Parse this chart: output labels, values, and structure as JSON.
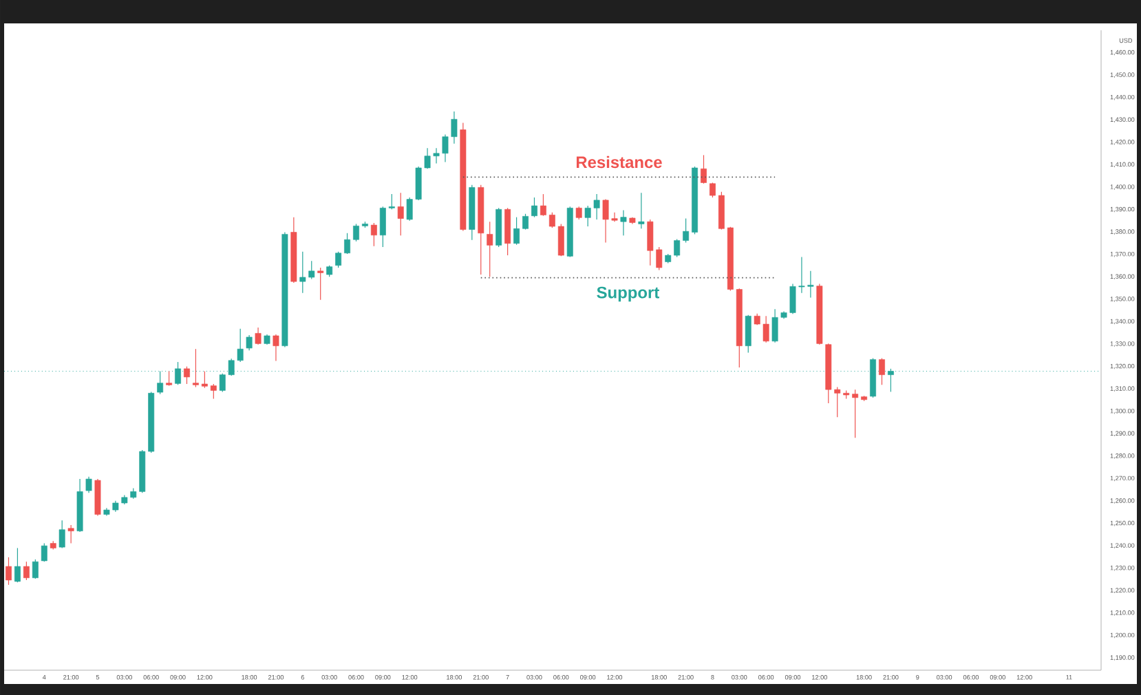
{
  "chart_data": {
    "type": "candlestick",
    "ylabel": "USD",
    "categories": [
      null,
      null,
      null,
      null,
      "4",
      null,
      null,
      "21:00",
      null,
      null,
      "5",
      null,
      null,
      "03:00",
      null,
      null,
      "06:00",
      null,
      null,
      "09:00",
      null,
      null,
      "12:00",
      null,
      null,
      null,
      null,
      "18:00",
      null,
      null,
      "21:00",
      null,
      null,
      "6",
      null,
      null,
      "03:00",
      null,
      null,
      "06:00",
      null,
      null,
      "09:00",
      null,
      null,
      "12:00",
      null,
      null,
      null,
      null,
      "18:00",
      null,
      null,
      "21:00",
      null,
      null,
      "7",
      null,
      null,
      "03:00",
      null,
      null,
      "06:00",
      null,
      null,
      "09:00",
      null,
      null,
      "12:00",
      null,
      null,
      null,
      null,
      "18:00",
      null,
      null,
      "21:00",
      null,
      null,
      "8",
      null,
      null,
      "03:00",
      null,
      null,
      "06:00",
      null,
      null,
      "09:00",
      null,
      null,
      "12:00",
      null,
      null,
      null,
      null,
      "18:00",
      null,
      null,
      "21:00",
      null,
      null,
      "9",
      null,
      null,
      "03:00",
      null,
      null,
      "06:00",
      null,
      null,
      "09:00",
      null,
      null,
      "12:00",
      null,
      null,
      null,
      null,
      "11",
      null,
      null,
      null
    ],
    "ohlc": [
      [
        1230.8,
        1234.9,
        1222.6,
        1224.7
      ],
      [
        1224.1,
        1239.0,
        1223.7,
        1230.8
      ],
      [
        1230.8,
        1232.9,
        1224.7,
        1225.7
      ],
      [
        1225.7,
        1233.9,
        1225.3,
        1232.9
      ],
      [
        1233.3,
        1241.1,
        1232.9,
        1240.0
      ],
      [
        1241.1,
        1242.1,
        1238.4,
        1239.0
      ],
      [
        1239.4,
        1251.3,
        1239.0,
        1247.2
      ],
      [
        1247.8,
        1249.3,
        1241.1,
        1246.6
      ],
      [
        1246.6,
        1269.8,
        1246.2,
        1264.2
      ],
      [
        1264.6,
        1270.8,
        1263.6,
        1269.8
      ],
      [
        1269.2,
        1269.8,
        1253.4,
        1254.0
      ],
      [
        1254.0,
        1256.9,
        1253.4,
        1256.0
      ],
      [
        1256.0,
        1260.1,
        1255.2,
        1259.1
      ],
      [
        1259.1,
        1262.6,
        1258.5,
        1261.6
      ],
      [
        1261.6,
        1265.7,
        1261.0,
        1264.2
      ],
      [
        1264.2,
        1282.7,
        1263.6,
        1282.1
      ],
      [
        1282.1,
        1308.7,
        1281.5,
        1308.1
      ],
      [
        1308.5,
        1317.9,
        1307.7,
        1312.6
      ],
      [
        1312.6,
        1317.9,
        1311.4,
        1311.8
      ],
      [
        1312.4,
        1322.0,
        1311.8,
        1319.0
      ],
      [
        1319.0,
        1320.0,
        1312.2,
        1315.3
      ],
      [
        1312.6,
        1327.8,
        1310.8,
        1311.8
      ],
      [
        1312.2,
        1317.9,
        1310.4,
        1311.2
      ],
      [
        1311.4,
        1312.2,
        1305.6,
        1309.3
      ],
      [
        1309.3,
        1316.9,
        1308.7,
        1316.3
      ],
      [
        1316.3,
        1323.5,
        1315.9,
        1322.7
      ],
      [
        1322.7,
        1336.8,
        1322.0,
        1327.8
      ],
      [
        1328.2,
        1334.0,
        1327.2,
        1333.1
      ],
      [
        1334.8,
        1337.4,
        1329.8,
        1330.2
      ],
      [
        1330.2,
        1334.3,
        1329.8,
        1333.7
      ],
      [
        1333.7,
        1334.3,
        1322.5,
        1329.2
      ],
      [
        1329.2,
        1379.9,
        1328.6,
        1379.0
      ],
      [
        1379.9,
        1386.6,
        1357.3,
        1357.9
      ],
      [
        1357.9,
        1371.2,
        1352.8,
        1359.8
      ],
      [
        1359.8,
        1367.1,
        1359.0,
        1362.6
      ],
      [
        1362.6,
        1364.1,
        1349.7,
        1361.8
      ],
      [
        1361.0,
        1365.1,
        1360.0,
        1364.5
      ],
      [
        1365.1,
        1371.2,
        1364.1,
        1370.6
      ],
      [
        1370.6,
        1379.5,
        1370.2,
        1376.6
      ],
      [
        1376.6,
        1383.6,
        1375.8,
        1382.7
      ],
      [
        1382.7,
        1384.6,
        1381.9,
        1383.6
      ],
      [
        1383.1,
        1384.0,
        1373.7,
        1378.6
      ],
      [
        1378.6,
        1391.3,
        1373.3,
        1390.7
      ],
      [
        1390.7,
        1396.9,
        1390.1,
        1391.3
      ],
      [
        1391.3,
        1397.5,
        1378.4,
        1386.0
      ],
      [
        1385.6,
        1395.4,
        1385.0,
        1394.6
      ],
      [
        1394.6,
        1409.2,
        1394.2,
        1408.6
      ],
      [
        1408.6,
        1417.4,
        1408.2,
        1413.9
      ],
      [
        1413.9,
        1417.4,
        1410.6,
        1415.1
      ],
      [
        1415.1,
        1423.5,
        1411.2,
        1422.5
      ],
      [
        1422.5,
        1433.8,
        1419.4,
        1430.3
      ],
      [
        1425.6,
        1428.7,
        1380.5,
        1381.1
      ],
      [
        1381.1,
        1401.0,
        1376.4,
        1399.9
      ],
      [
        1399.9,
        1401.0,
        1361.0,
        1379.5
      ],
      [
        1379.0,
        1384.6,
        1360.0,
        1374.1
      ],
      [
        1374.1,
        1390.7,
        1373.3,
        1390.1
      ],
      [
        1390.1,
        1390.7,
        1369.6,
        1374.9
      ],
      [
        1374.9,
        1386.6,
        1374.3,
        1381.5
      ],
      [
        1381.5,
        1388.1,
        1381.1,
        1387.0
      ],
      [
        1387.2,
        1395.4,
        1386.6,
        1391.7
      ],
      [
        1391.7,
        1396.9,
        1387.2,
        1387.6
      ],
      [
        1387.6,
        1388.7,
        1381.9,
        1382.5
      ],
      [
        1382.5,
        1383.6,
        1369.2,
        1369.6
      ],
      [
        1369.2,
        1391.3,
        1368.8,
        1390.7
      ],
      [
        1390.7,
        1391.3,
        1385.6,
        1386.4
      ],
      [
        1386.4,
        1391.7,
        1382.5,
        1390.7
      ],
      [
        1390.7,
        1396.9,
        1385.6,
        1394.2
      ],
      [
        1394.2,
        1394.6,
        1375.3,
        1385.6
      ],
      [
        1386.0,
        1388.7,
        1384.6,
        1385.2
      ],
      [
        1384.6,
        1389.7,
        1378.4,
        1386.6
      ],
      [
        1386.2,
        1386.6,
        1383.6,
        1384.2
      ],
      [
        1383.6,
        1397.5,
        1381.5,
        1384.6
      ],
      [
        1384.6,
        1385.6,
        1365.1,
        1371.7
      ],
      [
        1372.1,
        1373.3,
        1363.0,
        1364.1
      ],
      [
        1366.7,
        1370.2,
        1366.1,
        1369.6
      ],
      [
        1369.6,
        1376.8,
        1368.8,
        1376.2
      ],
      [
        1376.2,
        1386.0,
        1375.3,
        1380.3
      ],
      [
        1379.9,
        1409.2,
        1379.0,
        1408.6
      ],
      [
        1408.2,
        1414.3,
        1401.6,
        1402.0
      ],
      [
        1401.6,
        1402.0,
        1395.4,
        1396.3
      ],
      [
        1396.3,
        1397.9,
        1381.1,
        1381.5
      ],
      [
        1381.9,
        1382.3,
        1353.8,
        1354.4
      ],
      [
        1354.4,
        1354.8,
        1319.6,
        1329.2
      ],
      [
        1329.2,
        1343.0,
        1326.2,
        1342.5
      ],
      [
        1342.5,
        1343.6,
        1338.5,
        1338.9
      ],
      [
        1338.9,
        1342.5,
        1330.7,
        1331.3
      ],
      [
        1331.3,
        1345.6,
        1330.7,
        1341.9
      ],
      [
        1341.9,
        1344.6,
        1341.3,
        1344.0
      ],
      [
        1344.0,
        1356.9,
        1343.4,
        1355.7
      ],
      [
        1355.5,
        1368.8,
        1352.8,
        1355.9
      ],
      [
        1355.7,
        1362.6,
        1350.7,
        1356.3
      ],
      [
        1355.9,
        1356.9,
        1329.8,
        1330.2
      ],
      [
        1329.8,
        1330.2,
        1303.6,
        1309.7
      ],
      [
        1309.7,
        1310.8,
        1297.4,
        1308.1
      ],
      [
        1308.1,
        1309.3,
        1305.6,
        1307.3
      ],
      [
        1307.7,
        1309.7,
        1288.2,
        1306.1
      ],
      [
        1306.5,
        1306.9,
        1304.6,
        1305.2
      ],
      [
        1306.7,
        1323.7,
        1306.1,
        1323.1
      ],
      [
        1323.1,
        1323.7,
        1311.8,
        1316.3
      ],
      [
        1316.3,
        1319.0,
        1308.7,
        1317.9
      ],
      null,
      null,
      null,
      null,
      null,
      null,
      null,
      null,
      null,
      null,
      null,
      null,
      null,
      null,
      null,
      null,
      null,
      null,
      null,
      null,
      null,
      null,
      null
    ],
    "series": [
      {
        "type": "line",
        "name": "Resistance",
        "color": "#555555",
        "line_style": "dotted",
        "values": [
          null,
          null,
          null,
          null,
          null,
          null,
          null,
          null,
          null,
          null,
          null,
          null,
          null,
          null,
          null,
          null,
          null,
          null,
          null,
          null,
          null,
          null,
          null,
          null,
          null,
          null,
          null,
          null,
          null,
          null,
          null,
          null,
          null,
          null,
          null,
          null,
          null,
          null,
          null,
          null,
          null,
          null,
          null,
          null,
          null,
          null,
          null,
          null,
          null,
          null,
          null,
          1404.5,
          1404.5,
          1404.5,
          1404.5,
          1404.5,
          1404.5,
          1404.5,
          1404.5,
          1404.5,
          1404.5,
          1404.5,
          1404.5,
          1404.5,
          1404.5,
          1404.5,
          1404.5,
          1404.5,
          1404.5,
          1404.5,
          1404.5,
          1404.5,
          1404.5,
          1404.5,
          1404.5,
          1404.5,
          1404.5,
          1404.5,
          1404.5,
          1404.5,
          1404.5,
          1404.5,
          1404.5,
          1404.5,
          1404.5,
          1404.5,
          1404.5,
          null,
          null,
          null,
          null,
          null,
          null,
          null,
          null,
          null,
          null,
          null,
          null,
          null,
          null,
          null,
          null,
          null,
          null,
          null,
          null,
          null,
          null,
          null,
          null,
          null,
          null,
          null,
          null,
          null,
          null,
          null,
          null,
          null,
          null,
          null,
          null
        ]
      },
      {
        "type": "line",
        "name": "Support",
        "color": "#555555",
        "line_style": "dotted",
        "values": [
          null,
          null,
          null,
          null,
          null,
          null,
          null,
          null,
          null,
          null,
          null,
          null,
          null,
          null,
          null,
          null,
          null,
          null,
          null,
          null,
          null,
          null,
          null,
          null,
          null,
          null,
          null,
          null,
          null,
          null,
          null,
          null,
          null,
          null,
          null,
          null,
          null,
          null,
          null,
          null,
          null,
          null,
          null,
          null,
          null,
          null,
          null,
          null,
          null,
          null,
          null,
          null,
          null,
          1359.6,
          1359.6,
          1359.6,
          1359.6,
          1359.6,
          1359.6,
          1359.6,
          1359.6,
          1359.6,
          1359.6,
          1359.6,
          1359.6,
          1359.6,
          1359.6,
          1359.6,
          1359.6,
          1359.6,
          1359.6,
          1359.6,
          1359.6,
          1359.6,
          1359.6,
          1359.6,
          1359.6,
          1359.6,
          1359.6,
          1359.6,
          1359.6,
          1359.6,
          1359.6,
          1359.6,
          1359.6,
          1359.6,
          1359.6,
          null,
          null,
          null,
          null,
          null,
          null,
          null,
          null,
          null,
          null,
          null,
          null,
          null,
          null,
          null,
          null,
          null,
          null,
          null,
          null,
          null,
          null,
          null,
          null,
          null,
          null,
          null,
          null,
          null,
          null,
          null,
          null,
          null,
          null,
          null,
          null
        ]
      }
    ],
    "ref_lines": [
      {
        "axis": "y",
        "value": 1317.9,
        "color": "#26a69a",
        "line_style": "dotted"
      }
    ],
    "ylim": [
      1184.5,
      1470
    ],
    "yticks": [
      {
        "value": 1190,
        "label": "1,190.00"
      },
      {
        "value": 1200,
        "label": "1,200.00"
      },
      {
        "value": 1210,
        "label": "1,210.00"
      },
      {
        "value": 1220,
        "label": "1,220.00"
      },
      {
        "value": 1230,
        "label": "1,230.00"
      },
      {
        "value": 1240,
        "label": "1,240.00"
      },
      {
        "value": 1250,
        "label": "1,250.00"
      },
      {
        "value": 1260,
        "label": "1,260.00"
      },
      {
        "value": 1270,
        "label": "1,270.00"
      },
      {
        "value": 1280,
        "label": "1,280.00"
      },
      {
        "value": 1290,
        "label": "1,290.00"
      },
      {
        "value": 1300,
        "label": "1,300.00"
      },
      {
        "value": 1310,
        "label": "1,310.00"
      },
      {
        "value": 1320,
        "label": "1,320.00"
      },
      {
        "value": 1330,
        "label": "1,330.00"
      },
      {
        "value": 1340,
        "label": "1,340.00"
      },
      {
        "value": 1350,
        "label": "1,350.00"
      },
      {
        "value": 1360,
        "label": "1,360.00"
      },
      {
        "value": 1370,
        "label": "1,370.00"
      },
      {
        "value": 1380,
        "label": "1,380.00"
      },
      {
        "value": 1390,
        "label": "1,390.00"
      },
      {
        "value": 1400,
        "label": "1,400.00"
      },
      {
        "value": 1410,
        "label": "1,410.00"
      },
      {
        "value": 1420,
        "label": "1,420.00"
      },
      {
        "value": 1430,
        "label": "1,430.00"
      },
      {
        "value": 1440,
        "label": "1,440.00"
      },
      {
        "value": 1450,
        "label": "1,450.00"
      },
      {
        "value": 1460,
        "label": "1,460.00"
      }
    ],
    "grid": false
  }
}
